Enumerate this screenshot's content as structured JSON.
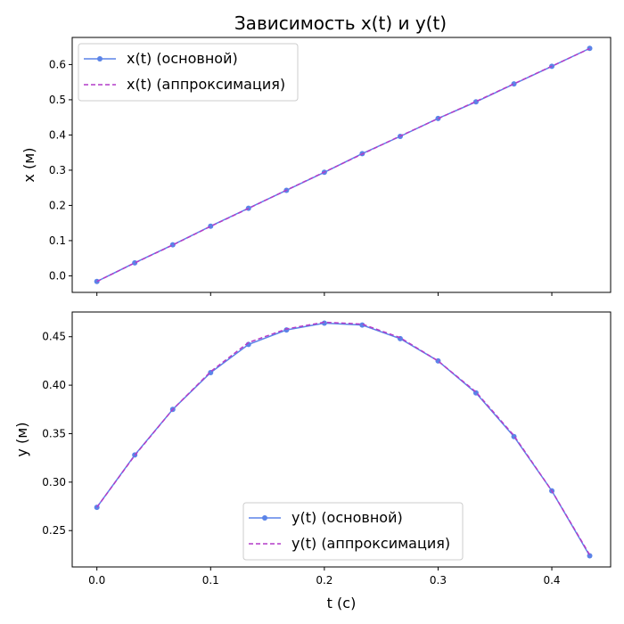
{
  "title": "Зависимость x(t) и y(t)",
  "chart_data": [
    {
      "type": "line",
      "title": "Зависимость x(t) и y(t)",
      "xlabel": "",
      "ylabel": "x (м)",
      "xlim": [
        -0.0217,
        0.4517
      ],
      "ylim": [
        -0.047,
        0.677
      ],
      "xticks": [
        0.0,
        0.1,
        0.2,
        0.3,
        0.4
      ],
      "xtick_labels": [
        "",
        "",
        "",
        "",
        ""
      ],
      "yticks": [
        0.0,
        0.1,
        0.2,
        0.3,
        0.4,
        0.5,
        0.6
      ],
      "ytick_labels": [
        "0.0",
        "0.1",
        "0.2",
        "0.3",
        "0.4",
        "0.5",
        "0.6"
      ],
      "legend_position": "upper left",
      "grid": false,
      "x": [
        0.0,
        0.0333,
        0.0667,
        0.1,
        0.1333,
        0.1667,
        0.2,
        0.2333,
        0.2667,
        0.3,
        0.3333,
        0.3667,
        0.4,
        0.4333
      ],
      "series": [
        {
          "name": "x(t) (основной)",
          "style": "solid-marker",
          "color": "#5b84e8",
          "values": [
            -0.016,
            0.037,
            0.088,
            0.141,
            0.192,
            0.243,
            0.294,
            0.347,
            0.396,
            0.447,
            0.494,
            0.545,
            0.595,
            0.646
          ]
        },
        {
          "name": "x(t) (аппроксимация)",
          "style": "dashed",
          "color": "#b43cc8",
          "values": [
            -0.016,
            0.0366,
            0.0875,
            0.1404,
            0.1914,
            0.2434,
            0.2946,
            0.3458,
            0.397,
            0.4465,
            0.4952,
            0.5453,
            0.5953,
            0.6453
          ]
        }
      ]
    },
    {
      "type": "line",
      "xlabel": "t (с)",
      "ylabel": "y (м)",
      "xlim": [
        -0.0217,
        0.4517
      ],
      "ylim": [
        0.2125,
        0.4755
      ],
      "xticks": [
        0.0,
        0.1,
        0.2,
        0.3,
        0.4
      ],
      "xtick_labels": [
        "0.0",
        "0.1",
        "0.2",
        "0.3",
        "0.4"
      ],
      "yticks": [
        0.25,
        0.3,
        0.35,
        0.4,
        0.45
      ],
      "ytick_labels": [
        "0.25",
        "0.30",
        "0.35",
        "0.40",
        "0.45"
      ],
      "legend_position": "lower center",
      "grid": false,
      "x": [
        0.0,
        0.0333,
        0.0667,
        0.1,
        0.1333,
        0.1667,
        0.2,
        0.2333,
        0.2667,
        0.3,
        0.3333,
        0.3667,
        0.4,
        0.4333
      ],
      "series": [
        {
          "name": "y(t) (основной)",
          "style": "solid-marker",
          "color": "#5b84e8",
          "values": [
            0.274,
            0.328,
            0.375,
            0.413,
            0.442,
            0.457,
            0.464,
            0.462,
            0.448,
            0.425,
            0.392,
            0.347,
            0.291,
            0.224
          ]
        },
        {
          "name": "y(t) (аппроксимация)",
          "style": "dashed",
          "color": "#b43cc8",
          "values": [
            0.274,
            0.3275,
            0.375,
            0.414,
            0.444,
            0.458,
            0.465,
            0.463,
            0.449,
            0.425,
            0.393,
            0.348,
            0.291,
            0.225
          ]
        }
      ]
    }
  ]
}
